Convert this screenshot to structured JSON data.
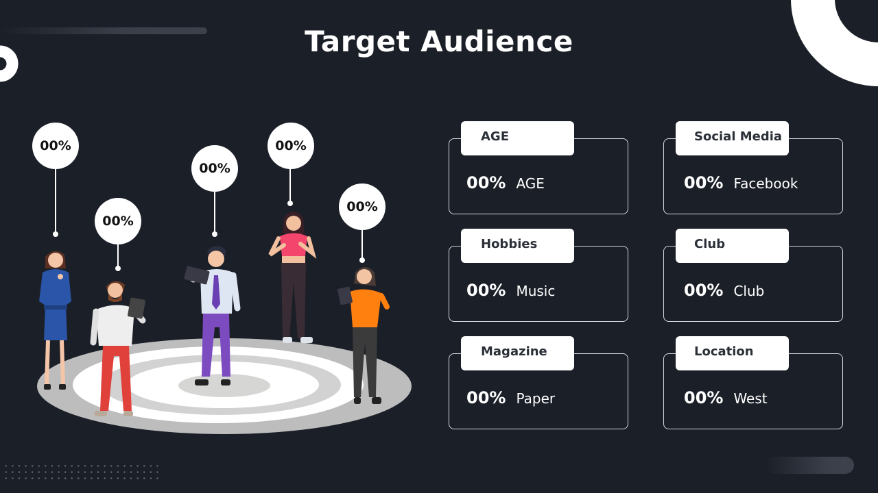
{
  "title": "Target Audience",
  "colors": {
    "background": "#1b1f28",
    "card_border": "#d7dae0",
    "text": "#ffffff",
    "tab_background": "#ffffff",
    "tab_text": "#2b2f38"
  },
  "bubbles": [
    "00%",
    "00%",
    "00%",
    "00%",
    "00%"
  ],
  "cards": [
    {
      "title": "AGE",
      "value": "00%",
      "label": "AGE"
    },
    {
      "title": "Social Media",
      "value": "00%",
      "label": "Facebook"
    },
    {
      "title": "Hobbies",
      "value": "00%",
      "label": "Music"
    },
    {
      "title": "Club",
      "value": "00%",
      "label": "Club"
    },
    {
      "title": "Magazine",
      "value": "00%",
      "label": "Paper"
    },
    {
      "title": "Location",
      "value": "00%",
      "label": "West"
    }
  ]
}
